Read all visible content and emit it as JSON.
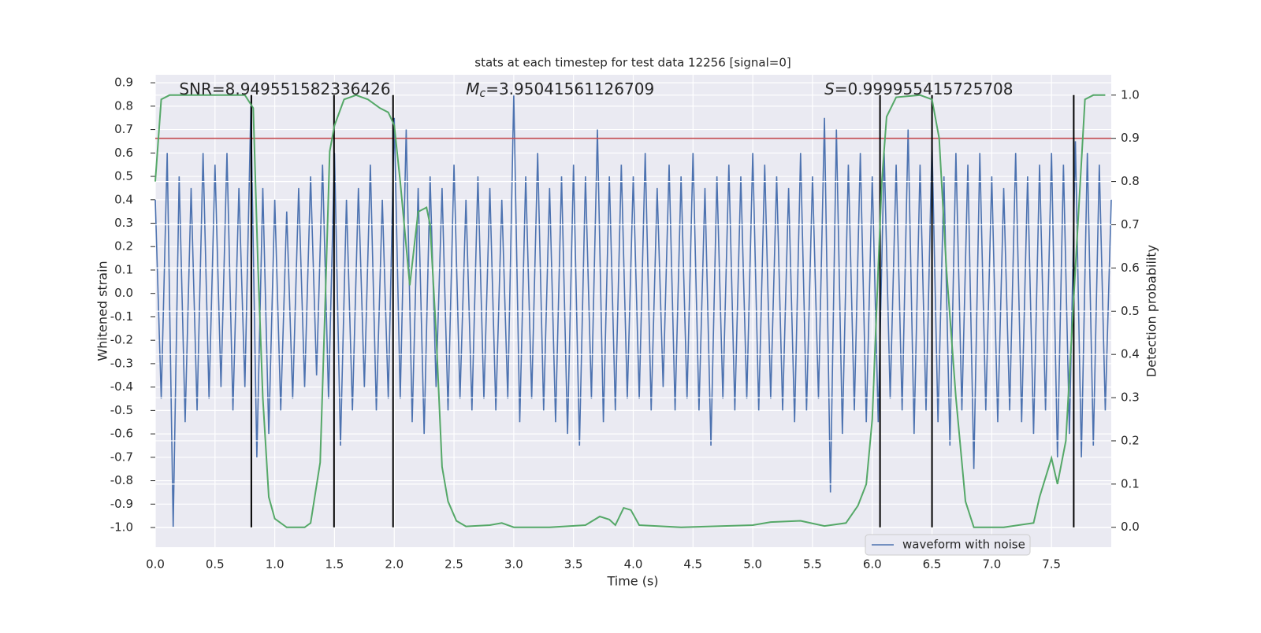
{
  "chart_data": {
    "type": "line",
    "title": "stats at each timestep for test data 12256 [signal=0]",
    "xlabel": "Time (s)",
    "ylabel": "Whitened strain",
    "y2label": "Detection probability",
    "xlim": [
      0,
      8.0
    ],
    "ylim": [
      -1.084,
      0.934
    ],
    "y2lim": [
      -0.046,
      1.047
    ],
    "xticks": [
      {
        "value": 0,
        "label": "0.0"
      },
      0.5,
      {
        "value": 1,
        "label": "1.0"
      },
      1.5,
      {
        "value": 2,
        "label": "2.0"
      },
      2.5,
      {
        "value": 3,
        "label": "3.0"
      },
      3.5,
      {
        "value": 4,
        "label": "4.0"
      },
      4.5,
      {
        "value": 5,
        "label": "5.0"
      },
      5.5,
      {
        "value": 6,
        "label": "6.0"
      },
      6.5,
      {
        "value": 7,
        "label": "7.0"
      },
      7.5
    ],
    "yticks": [
      {
        "value": -1,
        "label": "-1.0"
      },
      -0.9,
      -0.8,
      -0.7,
      -0.6,
      -0.5,
      -0.4,
      -0.3,
      -0.2,
      -0.1,
      {
        "value": 0,
        "label": "0.0"
      },
      0.1,
      0.2,
      0.3,
      0.4,
      0.5,
      0.6,
      0.7,
      0.8,
      0.9
    ],
    "y2ticks": [
      {
        "value": 0,
        "label": "0.0"
      },
      0.1,
      0.2,
      0.3,
      0.4,
      0.5,
      0.6,
      0.7,
      0.8,
      0.9,
      {
        "value": 1,
        "label": "1.0"
      }
    ],
    "grid": true,
    "legend": "lower right",
    "annotations": [
      {
        "text": "SNR=8.949551582336426",
        "x": 0.2
      },
      {
        "symbol": "M",
        "subscript": "c",
        "text": "=3.95041561126709",
        "x": 2.6
      },
      {
        "symbol": "S",
        "text": "=0.999955415725708",
        "x": 5.6
      }
    ],
    "threshold": {
      "value": 0.9,
      "axis": "y2",
      "color": "#c44e52"
    },
    "events": {
      "x": [
        0.804,
        1.496,
        1.99,
        6.065,
        6.5,
        7.686
      ],
      "ymin": 0,
      "ymax": 1,
      "axis": "y2",
      "color": "#000000"
    },
    "series": [
      {
        "name": "waveform with noise",
        "color": "#4c72b0",
        "axis": "y",
        "x": [
          0,
          0.05,
          0.1,
          0.15,
          0.2,
          0.25,
          0.3,
          0.35,
          0.4,
          0.45,
          0.5,
          0.55,
          0.6,
          0.65,
          0.7,
          0.75,
          0.8,
          0.85,
          0.9,
          0.95,
          1,
          1.05,
          1.1,
          1.15,
          1.2,
          1.25,
          1.3,
          1.35,
          1.4,
          1.45,
          1.5,
          1.55,
          1.6,
          1.65,
          1.7,
          1.75,
          1.8,
          1.85,
          1.9,
          1.95,
          2,
          2.05,
          2.1,
          2.15,
          2.2,
          2.25,
          2.3,
          2.35,
          2.4,
          2.45,
          2.5,
          2.55,
          2.6,
          2.65,
          2.7,
          2.75,
          2.8,
          2.85,
          2.9,
          2.95,
          3,
          3.05,
          3.1,
          3.15,
          3.2,
          3.25,
          3.3,
          3.35,
          3.4,
          3.45,
          3.5,
          3.55,
          3.6,
          3.65,
          3.7,
          3.75,
          3.8,
          3.85,
          3.9,
          3.95,
          4,
          4.05,
          4.1,
          4.15,
          4.2,
          4.25,
          4.3,
          4.35,
          4.4,
          4.45,
          4.5,
          4.55,
          4.6,
          4.65,
          4.7,
          4.75,
          4.8,
          4.85,
          4.9,
          4.95,
          5,
          5.05,
          5.1,
          5.15,
          5.2,
          5.25,
          5.3,
          5.35,
          5.4,
          5.45,
          5.5,
          5.55,
          5.6,
          5.65,
          5.7,
          5.75,
          5.8,
          5.85,
          5.9,
          5.95,
          6,
          6.05,
          6.1,
          6.15,
          6.2,
          6.25,
          6.3,
          6.35,
          6.4,
          6.45,
          6.5,
          6.55,
          6.6,
          6.65,
          6.7,
          6.75,
          6.8,
          6.85,
          6.9,
          6.95,
          7,
          7.05,
          7.1,
          7.15,
          7.2,
          7.25,
          7.3,
          7.35,
          7.4,
          7.45,
          7.5,
          7.55,
          7.6,
          7.65,
          7.7,
          7.75,
          7.8,
          7.85,
          7.9,
          7.95,
          8
        ],
        "values": [
          0.4,
          -0.45,
          0.6,
          -1.0,
          0.5,
          -0.55,
          0.45,
          -0.5,
          0.6,
          -0.45,
          0.55,
          -0.4,
          0.6,
          -0.5,
          0.45,
          -0.4,
          0.8,
          -0.7,
          0.45,
          -0.6,
          0.4,
          -0.5,
          0.35,
          -0.45,
          0.45,
          -0.4,
          0.5,
          -0.35,
          0.55,
          -0.45,
          0.6,
          -0.65,
          0.4,
          -0.5,
          0.45,
          -0.4,
          0.55,
          -0.5,
          0.4,
          -0.45,
          0.75,
          -0.45,
          0.7,
          -0.55,
          0.45,
          -0.6,
          0.5,
          -0.4,
          0.45,
          -0.5,
          0.55,
          -0.45,
          0.4,
          -0.5,
          0.5,
          -0.45,
          0.45,
          -0.5,
          0.4,
          -0.45,
          0.85,
          -0.55,
          0.5,
          -0.45,
          0.6,
          -0.5,
          0.45,
          -0.55,
          0.5,
          -0.6,
          0.55,
          -0.65,
          0.5,
          -0.45,
          0.7,
          -0.55,
          0.5,
          -0.5,
          0.55,
          -0.45,
          0.5,
          -0.45,
          0.6,
          -0.5,
          0.45,
          -0.4,
          0.55,
          -0.5,
          0.5,
          -0.45,
          0.6,
          -0.5,
          0.45,
          -0.65,
          0.5,
          -0.45,
          0.55,
          -0.5,
          0.5,
          -0.45,
          0.6,
          -0.5,
          0.55,
          -0.45,
          0.5,
          -0.5,
          0.45,
          -0.55,
          0.6,
          -0.5,
          0.5,
          -0.45,
          0.75,
          -0.85,
          0.7,
          -0.6,
          0.55,
          -0.5,
          0.6,
          -0.55,
          0.5,
          -0.55,
          0.6,
          -0.45,
          0.55,
          -0.5,
          0.7,
          -0.6,
          0.55,
          -0.5,
          0.65,
          -0.55,
          0.5,
          -0.65,
          0.6,
          -0.5,
          0.55,
          -0.75,
          0.6,
          -0.5,
          0.5,
          -0.55,
          0.45,
          -0.5,
          0.6,
          -0.55,
          0.5,
          -0.6,
          0.55,
          -0.5,
          0.6,
          -0.7,
          0.55,
          -0.6,
          0.65,
          -0.7,
          0.6,
          -0.65,
          0.55,
          -0.5,
          0.4
        ]
      },
      {
        "color": "#55a868",
        "axis": "y2",
        "x": [
          0,
          0.05,
          0.12,
          0.75,
          0.82,
          0.86,
          0.9,
          0.95,
          1.0,
          1.1,
          1.25,
          1.3,
          1.38,
          1.42,
          1.46,
          1.5,
          1.58,
          1.68,
          1.78,
          1.88,
          1.95,
          2.0,
          2.05,
          2.1,
          2.13,
          2.2,
          2.27,
          2.3,
          2.35,
          2.4,
          2.45,
          2.52,
          2.6,
          2.8,
          2.9,
          3.0,
          3.3,
          3.6,
          3.72,
          3.8,
          3.85,
          3.92,
          3.98,
          4.05,
          4.4,
          5.0,
          5.15,
          5.4,
          5.6,
          5.78,
          5.88,
          5.95,
          6.0,
          6.05,
          6.08,
          6.12,
          6.2,
          6.4,
          6.5,
          6.56,
          6.62,
          6.7,
          6.78,
          6.85,
          7.1,
          7.35,
          7.4,
          7.5,
          7.55,
          7.62,
          7.7,
          7.78,
          7.85,
          7.95
        ],
        "values": [
          0.8,
          0.99,
          1.0,
          1.0,
          0.97,
          0.6,
          0.3,
          0.07,
          0.02,
          0.0,
          0.0,
          0.01,
          0.15,
          0.5,
          0.87,
          0.93,
          0.99,
          1.0,
          0.99,
          0.97,
          0.96,
          0.93,
          0.8,
          0.65,
          0.56,
          0.73,
          0.74,
          0.7,
          0.45,
          0.14,
          0.06,
          0.015,
          0.002,
          0.005,
          0.01,
          0.0,
          0.0,
          0.005,
          0.025,
          0.018,
          0.005,
          0.045,
          0.04,
          0.005,
          0.0,
          0.005,
          0.012,
          0.015,
          0.003,
          0.01,
          0.05,
          0.1,
          0.25,
          0.6,
          0.8,
          0.95,
          0.995,
          1.0,
          0.99,
          0.9,
          0.6,
          0.3,
          0.06,
          0.0,
          0.0,
          0.01,
          0.07,
          0.16,
          0.1,
          0.2,
          0.6,
          0.99,
          1.0,
          1.0
        ]
      }
    ]
  }
}
